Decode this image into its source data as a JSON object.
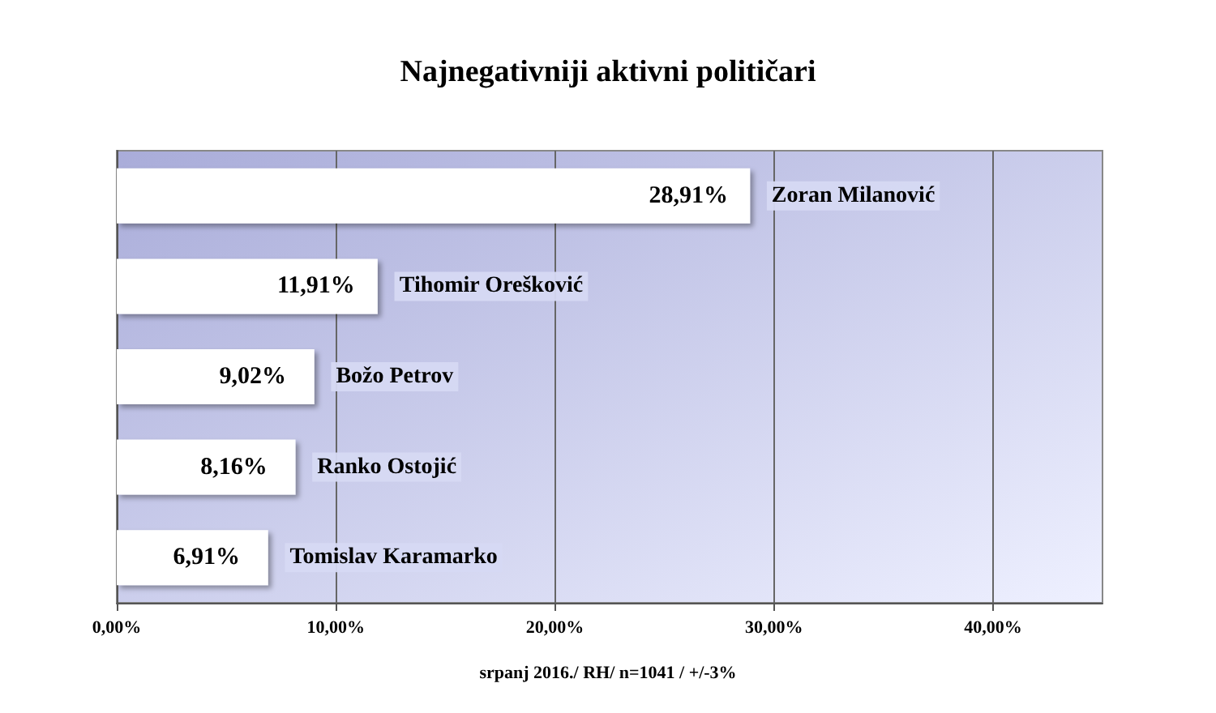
{
  "chart_data": {
    "type": "bar",
    "orientation": "horizontal",
    "title": "Najnegativniji aktivni političari",
    "categories": [
      "Zoran Milanović",
      "Tihomir Orešković",
      "Božo Petrov",
      "Ranko Ostojić",
      "Tomislav Karamarko"
    ],
    "values": [
      28.91,
      11.91,
      9.02,
      8.16,
      6.91
    ],
    "value_labels": [
      "28,91%",
      "11,91%",
      "9,02%",
      "8,16%",
      "6,91%"
    ],
    "color": "#ffffff",
    "xlim": [
      0,
      45
    ],
    "xticks": [
      {
        "value": 0,
        "label": "0,00%"
      },
      {
        "value": 10,
        "label": "10,00%"
      },
      {
        "value": 20,
        "label": "20,00%"
      },
      {
        "value": 30,
        "label": "30,00%"
      },
      {
        "value": 40,
        "label": "40,00%"
      }
    ],
    "grid": "x",
    "annotations": [
      "srpanj 2016./ RH/ n=1041 / +/-3%"
    ]
  }
}
